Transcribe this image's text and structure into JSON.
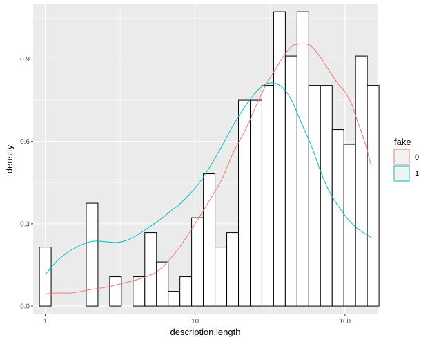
{
  "chart_data": {
    "type": "histogram_with_density",
    "xlabel": "description.length",
    "ylabel": "density",
    "x_scale": "log10",
    "xlim": [
      0.83,
      165
    ],
    "ylim": [
      -0.03,
      1.1
    ],
    "x_ticks": [
      1,
      10,
      100
    ],
    "x_tick_labels": [
      "1",
      "10",
      "100"
    ],
    "y_ticks": [
      0.0,
      0.3,
      0.6,
      0.9
    ],
    "y_tick_labels": [
      "0.0",
      "0.3",
      "0.6",
      "0.9"
    ],
    "grid": true,
    "histogram": {
      "bin_width_log10": 0.0782,
      "bin_centers": [
        1.0,
        1.197,
        1.433,
        1.716,
        2.054,
        2.459,
        2.944,
        3.524,
        4.219,
        5.051,
        6.047,
        7.239,
        8.666,
        10.37,
        12.42,
        14.87,
        17.8,
        21.31,
        25.51,
        30.54,
        36.56,
        43.77,
        52.39,
        62.72,
        75.09,
        89.89,
        107.6,
        128.8,
        154.2
      ],
      "values": [
        0.215,
        0.0,
        0.0,
        0.0,
        0.375,
        0.0,
        0.107,
        0.0,
        0.107,
        0.268,
        0.161,
        0.054,
        0.107,
        0.322,
        0.482,
        0.215,
        0.268,
        0.75,
        0.75,
        0.804,
        1.072,
        0.911,
        1.072,
        0.804,
        0.804,
        0.643,
        0.589,
        0.911,
        0.804
      ],
      "fill": "#ffffff",
      "stroke": "#000000"
    },
    "legend": {
      "title": "fake",
      "position": "right",
      "items": [
        {
          "label": "0",
          "color": "#F8766D"
        },
        {
          "label": "1",
          "color": "#00BFC4"
        }
      ]
    },
    "series": [
      {
        "name": "0",
        "color": "#F8766D",
        "x": [
          1.0,
          1.2,
          1.5,
          2.0,
          2.5,
          3.0,
          4.0,
          5.0,
          6.0,
          7.0,
          8.0,
          10.0,
          12.0,
          15.0,
          18.0,
          22.0,
          26.0,
          30.0,
          35.0,
          40.0,
          45.0,
          50.0,
          55.0,
          60.0,
          70.0,
          80.0,
          90.0,
          100.0,
          110.0,
          120.0,
          135.0,
          150.0
        ],
        "y": [
          0.045,
          0.048,
          0.048,
          0.06,
          0.068,
          0.078,
          0.095,
          0.112,
          0.14,
          0.18,
          0.22,
          0.3,
          0.37,
          0.46,
          0.56,
          0.65,
          0.74,
          0.81,
          0.87,
          0.92,
          0.95,
          0.955,
          0.955,
          0.945,
          0.9,
          0.85,
          0.81,
          0.78,
          0.74,
          0.68,
          0.6,
          0.51
        ]
      },
      {
        "name": "1",
        "color": "#00BFC4",
        "x": [
          1.0,
          1.2,
          1.5,
          2.0,
          2.5,
          3.0,
          3.5,
          4.0,
          5.0,
          6.0,
          7.0,
          8.0,
          10.0,
          12.0,
          15.0,
          18.0,
          22.0,
          26.0,
          30.0,
          35.0,
          40.0,
          45.0,
          50.0,
          60.0,
          70.0,
          80.0,
          100.0,
          120.0,
          150.0
        ],
        "y": [
          0.115,
          0.165,
          0.205,
          0.235,
          0.235,
          0.232,
          0.24,
          0.255,
          0.29,
          0.32,
          0.35,
          0.375,
          0.43,
          0.49,
          0.58,
          0.66,
          0.735,
          0.785,
          0.81,
          0.81,
          0.785,
          0.74,
          0.68,
          0.58,
          0.48,
          0.41,
          0.33,
          0.285,
          0.25
        ]
      }
    ]
  }
}
